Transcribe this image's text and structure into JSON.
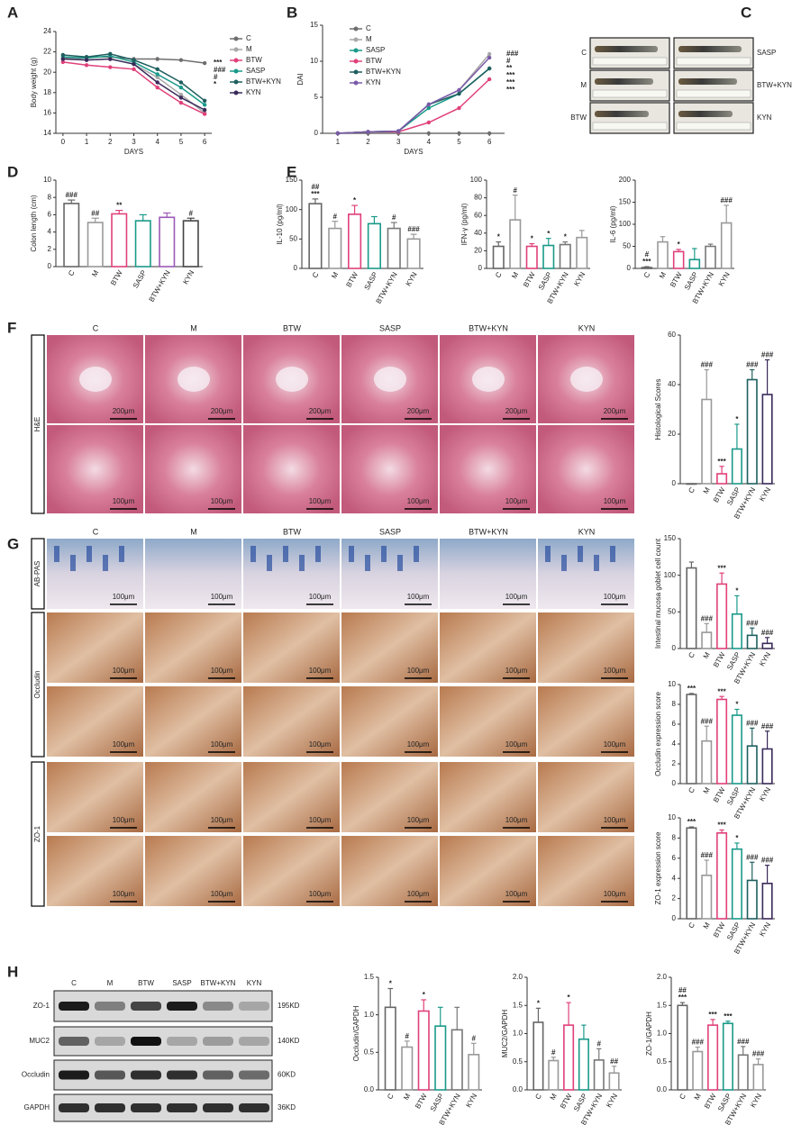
{
  "chart_data": [
    {
      "type": "line",
      "ylabel": "Body weight (g)",
      "xlabel": "DAYS",
      "x": [
        0,
        1,
        2,
        3,
        4,
        5,
        6
      ],
      "xlim": [
        -0.3,
        6.3
      ],
      "xticks": [
        0,
        1,
        2,
        3,
        4,
        5,
        6
      ],
      "ylim": [
        14,
        24
      ],
      "yticks": [
        14,
        16,
        18,
        20,
        22,
        24
      ],
      "series": [
        {
          "name": "C",
          "color": "#6e6e6e",
          "values": [
            21.3,
            21.5,
            21.5,
            21.3,
            21.3,
            21.2,
            20.9
          ]
        },
        {
          "name": "M",
          "color": "#a8a8a8",
          "values": [
            21.5,
            21.2,
            21.3,
            20.8,
            19.5,
            17.8,
            16.0
          ]
        },
        {
          "name": "BTW",
          "color": "#e0407a",
          "values": [
            21.0,
            20.7,
            20.5,
            20.3,
            18.5,
            17.0,
            15.9
          ]
        },
        {
          "name": "SASP",
          "color": "#1a9a8a",
          "values": [
            21.5,
            21.4,
            21.6,
            21.0,
            19.8,
            18.5,
            16.8
          ]
        },
        {
          "name": "BTW+KYN",
          "color": "#1f5f5f",
          "values": [
            21.7,
            21.5,
            21.8,
            21.2,
            20.3,
            19.0,
            17.2
          ]
        },
        {
          "name": "KYN",
          "color": "#3a2a5a",
          "values": [
            21.3,
            21.2,
            21.3,
            20.8,
            19.0,
            17.5,
            16.3
          ]
        }
      ],
      "annotations": [
        "***",
        "###",
        "#",
        "*"
      ]
    },
    {
      "type": "line",
      "ylabel": "DAI",
      "xlabel": "DAYS",
      "x": [
        1,
        2,
        3,
        4,
        5,
        6
      ],
      "xlim": [
        0.5,
        6.5
      ],
      "xticks": [
        1,
        2,
        3,
        4,
        5,
        6
      ],
      "ylim": [
        0,
        15
      ],
      "yticks": [
        0,
        5,
        10,
        15
      ],
      "series": [
        {
          "name": "C",
          "color": "#6e6e6e",
          "values": [
            0,
            0,
            0,
            0,
            0,
            0
          ]
        },
        {
          "name": "M",
          "color": "#a8a8a8",
          "values": [
            0,
            0.2,
            0.3,
            4.0,
            6.0,
            11.0
          ]
        },
        {
          "name": "SASP",
          "color": "#1a9a8a",
          "values": [
            0,
            0.2,
            0.3,
            3.5,
            5.5,
            9.0
          ]
        },
        {
          "name": "BTW",
          "color": "#e0407a",
          "values": [
            0,
            0.2,
            0.2,
            1.5,
            3.5,
            7.5
          ]
        },
        {
          "name": "BTW+KYN",
          "color": "#1f5f5f",
          "values": [
            0,
            0.2,
            0.3,
            4.0,
            5.5,
            9.0
          ]
        },
        {
          "name": "KYN",
          "color": "#7a5aa8",
          "values": [
            0,
            0.2,
            0.3,
            4.0,
            6.0,
            10.5
          ]
        }
      ],
      "annotations": [
        "###",
        "#",
        "**",
        "***",
        "***",
        "***"
      ]
    },
    {
      "type": "bar",
      "ylabel": "Colon length (cm)",
      "categories": [
        "C",
        "M",
        "BTW",
        "SASP",
        "BTW+KYN",
        "KYN"
      ],
      "values": [
        7.3,
        5.1,
        6.1,
        5.3,
        5.7,
        5.3
      ],
      "errors": [
        0.4,
        0.5,
        0.4,
        0.7,
        0.5,
        0.3
      ],
      "ylim": [
        0,
        10
      ],
      "yticks": [
        0,
        2,
        4,
        6,
        8,
        10
      ],
      "colors": [
        "#666666",
        "#999999",
        "#e0407a",
        "#1a9a8a",
        "#9b59b6",
        "#444444"
      ],
      "annotations": [
        [
          "###"
        ],
        [
          "##"
        ],
        [
          "**"
        ],
        [],
        [],
        [
          "#"
        ]
      ]
    },
    {
      "type": "bar",
      "ylabel": "IL-10 (pg/ml)",
      "categories": [
        "C",
        "M",
        "BTW",
        "SASP",
        "BTW+KYN",
        "KYN"
      ],
      "values": [
        110,
        68,
        92,
        76,
        68,
        50
      ],
      "errors": [
        8,
        12,
        15,
        12,
        10,
        8
      ],
      "ylim": [
        0,
        150
      ],
      "yticks": [
        0,
        50,
        100,
        150
      ],
      "colors": [
        "#666666",
        "#999999",
        "#e0407a",
        "#1a9a8a",
        "#777777",
        "#999999"
      ],
      "annotations": [
        [
          "##",
          "***"
        ],
        [
          "#"
        ],
        [
          "*"
        ],
        [],
        [
          "#"
        ],
        [
          "###"
        ]
      ]
    },
    {
      "type": "bar",
      "ylabel": "IFN-γ (pg/ml)",
      "categories": [
        "C",
        "M",
        "BTW",
        "SASP",
        "BTW+KYN",
        "KYN"
      ],
      "values": [
        25,
        55,
        25,
        26,
        27,
        35
      ],
      "errors": [
        5,
        28,
        3,
        8,
        3,
        8
      ],
      "ylim": [
        0,
        100
      ],
      "yticks": [
        0,
        20,
        40,
        60,
        80,
        100
      ],
      "colors": [
        "#666666",
        "#999999",
        "#e0407a",
        "#1a9a8a",
        "#777777",
        "#999999"
      ],
      "annotations": [
        [
          "*"
        ],
        [
          "#"
        ],
        [
          "*"
        ],
        [
          "*"
        ],
        [
          "*"
        ],
        []
      ]
    },
    {
      "type": "bar",
      "ylabel": "IL-6 (pg/ml)",
      "categories": [
        "C",
        "M",
        "BTW",
        "SASP",
        "BTW+KYN",
        "KYN"
      ],
      "values": [
        2,
        60,
        38,
        20,
        50,
        103
      ],
      "errors": [
        2,
        12,
        5,
        25,
        5,
        40
      ],
      "ylim": [
        0,
        200
      ],
      "yticks": [
        0,
        50,
        100,
        150,
        200
      ],
      "colors": [
        "#666666",
        "#999999",
        "#e0407a",
        "#1a9a8a",
        "#777777",
        "#999999"
      ],
      "annotations": [
        [
          "#",
          "***"
        ],
        [],
        [
          "*"
        ],
        [],
        [],
        [
          "###"
        ]
      ]
    },
    {
      "type": "bar",
      "ylabel": "Histological Scores",
      "categories": [
        "C",
        "M",
        "BTW",
        "SASP",
        "BTW+KYN",
        "KYN"
      ],
      "values": [
        0,
        34,
        4,
        14,
        42,
        36
      ],
      "errors": [
        0,
        12,
        3,
        10,
        4,
        14
      ],
      "ylim": [
        0,
        60
      ],
      "yticks": [
        0,
        20,
        40,
        60
      ],
      "colors": [
        "#666666",
        "#999999",
        "#e0407a",
        "#1a9a8a",
        "#1f5f5f",
        "#3a2a5a"
      ],
      "annotations": [
        [],
        [
          "###"
        ],
        [
          "***"
        ],
        [
          "*"
        ],
        [
          "###"
        ],
        [
          "###"
        ]
      ]
    },
    {
      "type": "bar",
      "ylabel": "Intestinal mucosa goblet cell count",
      "categories": [
        "C",
        "M",
        "BTW",
        "SASP",
        "BTW+KYN",
        "KYN"
      ],
      "values": [
        110,
        22,
        88,
        47,
        18,
        7
      ],
      "errors": [
        8,
        12,
        15,
        25,
        10,
        8
      ],
      "ylim": [
        0,
        150
      ],
      "yticks": [
        0,
        50,
        100,
        150
      ],
      "colors": [
        "#666666",
        "#999999",
        "#e0407a",
        "#1a9a8a",
        "#1f5f5f",
        "#3a2a5a"
      ],
      "annotations": [
        [],
        [
          "###"
        ],
        [
          "***"
        ],
        [
          "*"
        ],
        [
          "###"
        ],
        [
          "###"
        ]
      ]
    },
    {
      "type": "bar",
      "ylabel": "Occludin expression score",
      "categories": [
        "C",
        "M",
        "BTW",
        "SASP",
        "BTW+KYN",
        "KYN"
      ],
      "values": [
        9,
        4.3,
        8.5,
        6.9,
        3.8,
        3.5
      ],
      "errors": [
        0.1,
        1.5,
        0.3,
        0.6,
        1.8,
        1.8
      ],
      "ylim": [
        0,
        10
      ],
      "yticks": [
        0,
        2,
        4,
        6,
        8,
        10
      ],
      "colors": [
        "#666666",
        "#999999",
        "#e0407a",
        "#1a9a8a",
        "#1f5f5f",
        "#3a2a5a"
      ],
      "annotations": [
        [
          "***"
        ],
        [
          "###"
        ],
        [
          "***"
        ],
        [
          "*"
        ],
        [
          "###"
        ],
        [
          "###"
        ]
      ]
    },
    {
      "type": "bar",
      "ylabel": "ZO-1 expression score",
      "categories": [
        "C",
        "M",
        "BTW",
        "SASP",
        "BTW+KYN",
        "KYN"
      ],
      "values": [
        9,
        4.3,
        8.5,
        6.9,
        3.8,
        3.5
      ],
      "errors": [
        0.1,
        1.5,
        0.3,
        0.6,
        1.8,
        1.8
      ],
      "ylim": [
        0,
        10
      ],
      "yticks": [
        0,
        2,
        4,
        6,
        8,
        10
      ],
      "colors": [
        "#666666",
        "#999999",
        "#e0407a",
        "#1a9a8a",
        "#1f5f5f",
        "#3a2a5a"
      ],
      "annotations": [
        [
          "***"
        ],
        [
          "###"
        ],
        [
          "***"
        ],
        [
          "*"
        ],
        [
          "###"
        ],
        [
          "###"
        ]
      ]
    },
    {
      "type": "bar",
      "ylabel": "Occludin/GAPDH",
      "categories": [
        "C",
        "M",
        "BTW",
        "SASP",
        "BTW+KYN",
        "KYN"
      ],
      "values": [
        1.1,
        0.57,
        1.05,
        0.85,
        0.8,
        0.47
      ],
      "errors": [
        0.25,
        0.08,
        0.15,
        0.25,
        0.3,
        0.15
      ],
      "ylim": [
        0,
        1.5
      ],
      "yticks": [
        {
          "value": 0,
          "label": "0.0"
        },
        0.5,
        {
          "value": 1,
          "label": "1.0"
        },
        1.5
      ],
      "colors": [
        "#666666",
        "#999999",
        "#e0407a",
        "#1a9a8a",
        "#777777",
        "#999999"
      ],
      "annotations": [
        [
          "*"
        ],
        [
          "#"
        ],
        [
          "*"
        ],
        [],
        [],
        [
          "#"
        ]
      ]
    },
    {
      "type": "bar",
      "ylabel": "MUC2/GAPDH",
      "categories": [
        "C",
        "M",
        "BTW",
        "SASP",
        "BTW+KYN",
        "KYN"
      ],
      "values": [
        1.2,
        0.52,
        1.15,
        0.9,
        0.53,
        0.3
      ],
      "errors": [
        0.25,
        0.06,
        0.4,
        0.25,
        0.2,
        0.12
      ],
      "ylim": [
        0,
        2
      ],
      "yticks": [
        {
          "value": 0,
          "label": "0.0"
        },
        0.5,
        {
          "value": 1,
          "label": "1.0"
        },
        1.5,
        {
          "value": 2,
          "label": "2.0"
        }
      ],
      "colors": [
        "#666666",
        "#999999",
        "#e0407a",
        "#1a9a8a",
        "#777777",
        "#999999"
      ],
      "annotations": [
        [
          "*"
        ],
        [
          "#"
        ],
        [
          "*"
        ],
        [],
        [
          "#"
        ],
        [
          "##"
        ]
      ]
    },
    {
      "type": "bar",
      "ylabel": "ZO-1/GAPDH",
      "categories": [
        "C",
        "M",
        "BTW",
        "SASP",
        "BTW+KYN",
        "KYN"
      ],
      "values": [
        1.5,
        0.68,
        1.15,
        1.18,
        0.62,
        0.45
      ],
      "errors": [
        0.05,
        0.08,
        0.1,
        0.04,
        0.15,
        0.1
      ],
      "ylim": [
        0,
        2
      ],
      "yticks": [
        {
          "value": 0,
          "label": "0.0"
        },
        0.5,
        {
          "value": 1,
          "label": "1.0"
        },
        1.5,
        {
          "value": 2,
          "label": "2.0"
        }
      ],
      "colors": [
        "#666666",
        "#999999",
        "#e0407a",
        "#1a9a8a",
        "#777777",
        "#999999"
      ],
      "annotations": [
        [
          "##",
          "***"
        ],
        [
          "###"
        ],
        [
          "***"
        ],
        [
          "***"
        ],
        [
          "###"
        ],
        [
          "###"
        ]
      ]
    }
  ],
  "figure": {
    "panel_labels": [
      "A",
      "B",
      "C",
      "D",
      "E",
      "F",
      "G",
      "H"
    ],
    "colon_photos": {
      "left": [
        "C",
        "M",
        "BTW"
      ],
      "right": [
        "SASP",
        "BTW+KYN",
        "KYN"
      ]
    },
    "histology": {
      "columns": [
        "C",
        "M",
        "BTW",
        "SASP",
        "BTW+KYN",
        "KYN"
      ],
      "he_label": "H&E",
      "g_rows": [
        "AB-PAS",
        "Occludin",
        "ZO-1"
      ],
      "scale_200": "200μm",
      "scale_100": "100μm"
    },
    "western": {
      "lanes": [
        "C",
        "M",
        "BTW",
        "SASP",
        "BTW+KYN",
        "KYN"
      ],
      "bands": [
        {
          "name": "ZO-1",
          "size": "195KD"
        },
        {
          "name": "MUC2",
          "size": "140KD"
        },
        {
          "name": "Occludin",
          "size": "60KD"
        },
        {
          "name": "GAPDH",
          "size": "36KD"
        }
      ]
    }
  }
}
